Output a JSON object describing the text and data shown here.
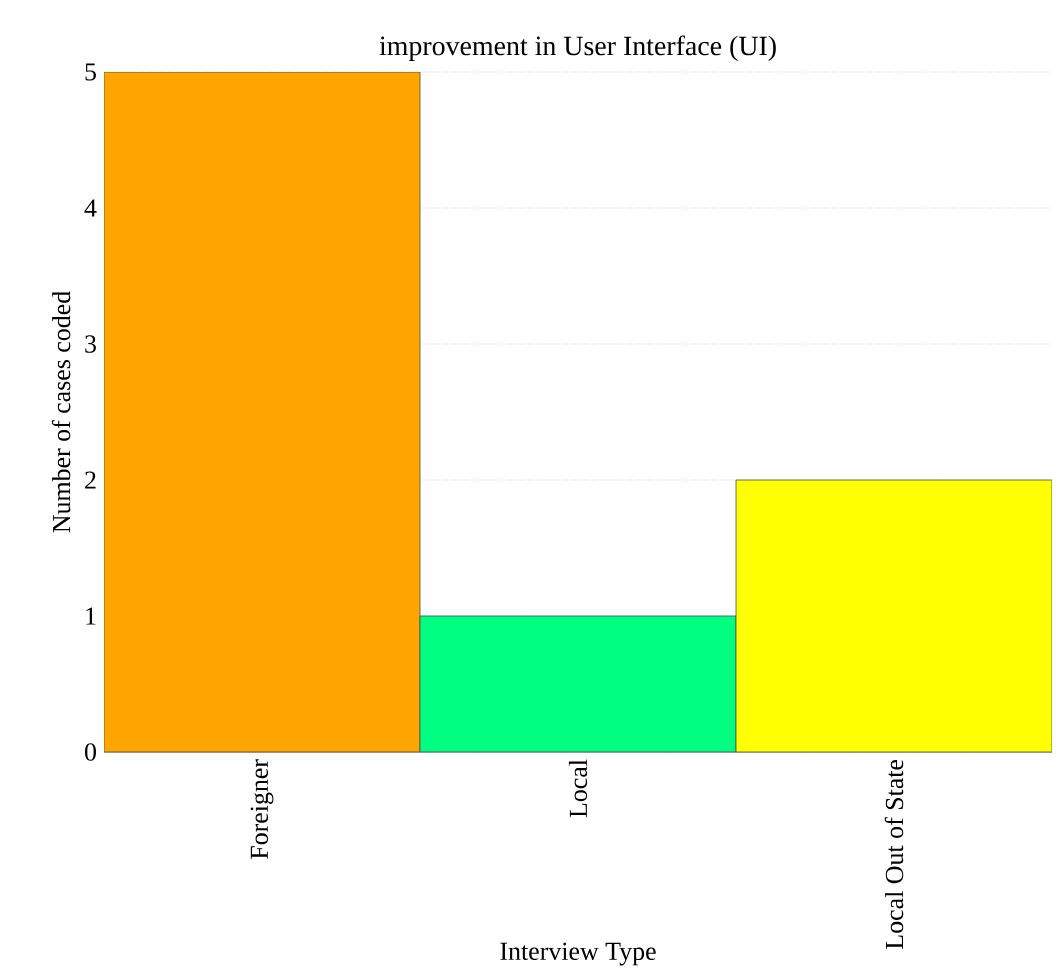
{
  "chart_data": {
    "type": "bar",
    "title": "improvement in User Interface (UI)",
    "xlabel": "Interview Type",
    "ylabel": "Number of cases coded",
    "categories": [
      "Foreigner",
      "Local",
      "Local Out of State"
    ],
    "values": [
      5,
      1,
      2
    ],
    "colors": [
      "#ffa500",
      "#00ff80",
      "#ffff00"
    ],
    "ylim": [
      0,
      5
    ],
    "yticks": [
      0,
      1,
      2,
      3,
      4,
      5
    ],
    "grid": "y"
  }
}
